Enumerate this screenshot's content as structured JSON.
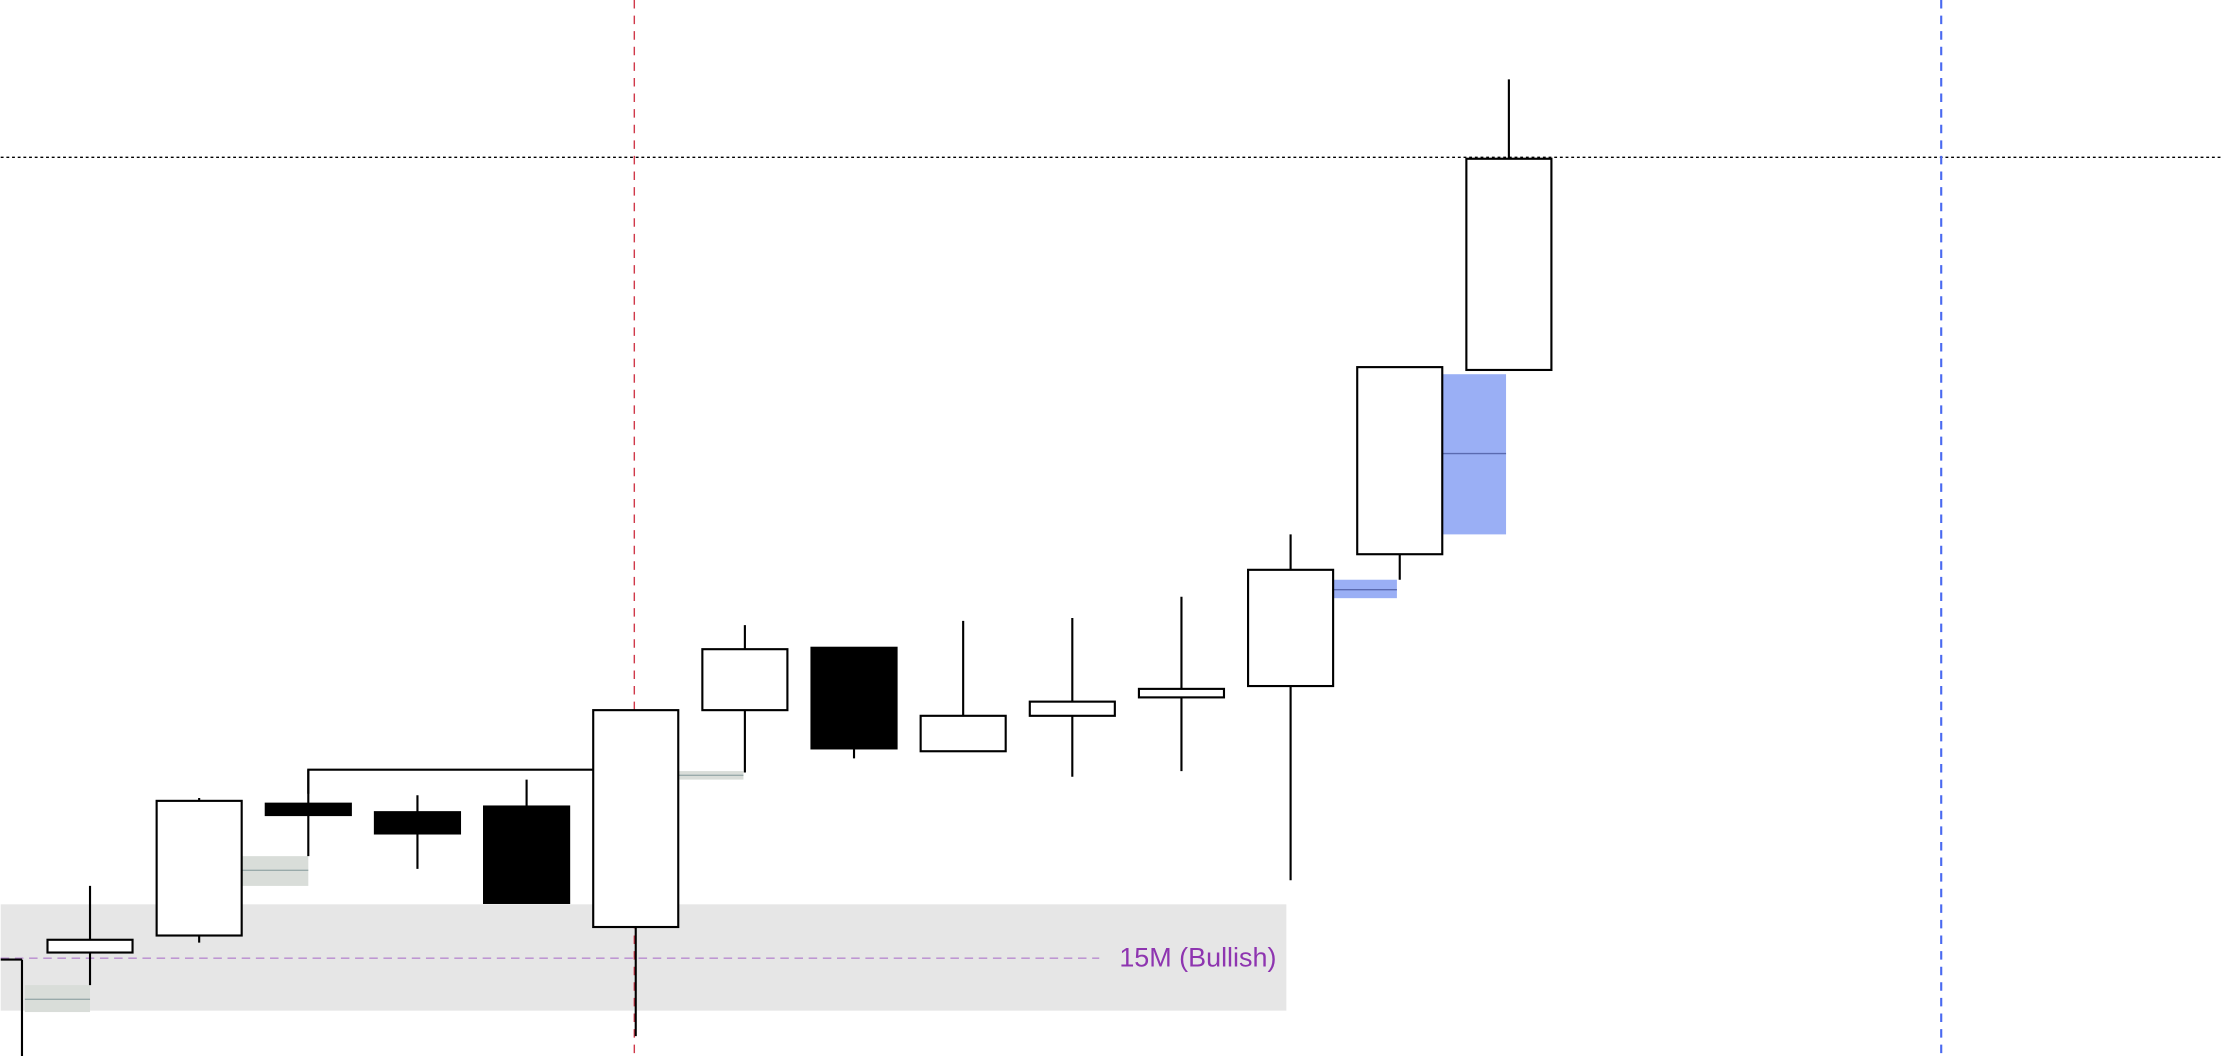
{
  "chart_data": {
    "type": "candlestick",
    "zone_label": "15M (Bullish)",
    "categories": [
      null,
      null,
      null,
      null,
      null,
      null,
      null,
      null,
      null,
      null,
      null,
      null,
      null,
      null
    ],
    "open": [
      73,
      85,
      178,
      172,
      176,
      91,
      244,
      288,
      215,
      240,
      253,
      261,
      354,
      484
    ],
    "high": [
      120,
      182,
      202,
      184,
      195,
      244,
      304,
      288,
      307,
      309,
      324,
      368,
      486,
      689
    ],
    "low": [
      50,
      80,
      141,
      132,
      108,
      14,
      200,
      210,
      215,
      197,
      201,
      124,
      336,
      484
    ],
    "close": [
      82,
      180,
      170,
      157,
      108,
      244,
      287,
      217,
      240,
      250,
      259,
      343,
      486,
      633
    ],
    "up_color": "#ffffff",
    "down_color": "#000000",
    "ylim": [
      0,
      745
    ]
  }
}
